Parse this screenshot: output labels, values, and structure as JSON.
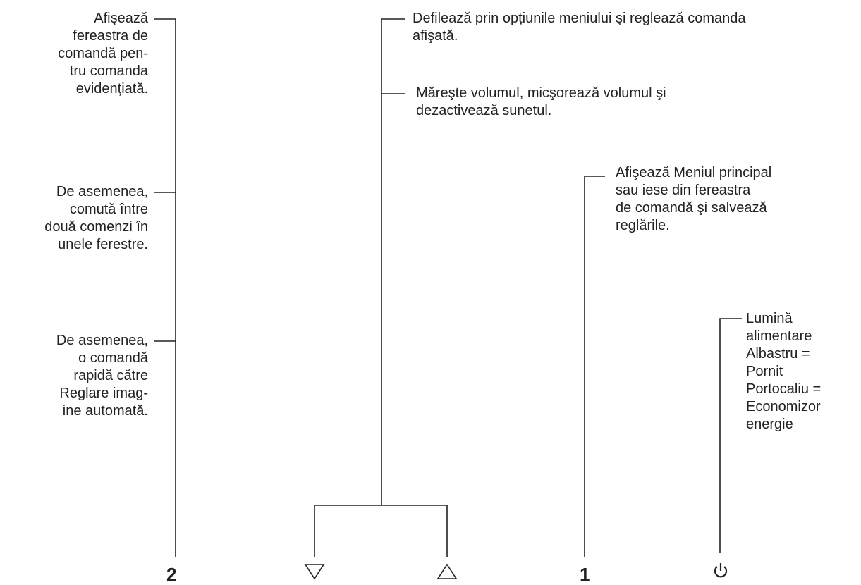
{
  "labels": {
    "button2_select": "Afişează\nfereastra de\ncomandă pen-\ntru comanda\nevidențiată.",
    "button2_toggle": "De asemenea,\ncomută între\ndouă comenzi în\nunele ferestre.",
    "button2_auto": "De asemenea,\no comandă\nrapidă către\nReglare imag-\nine automată.",
    "arrows_scroll": "Defilează prin opțiunile meniului şi reglează comanda\nafişată.",
    "arrows_volume": "Măreşte volumul, micşorează volumul şi\ndezactivează sunetul.",
    "button1_menu": "Afişează Meniul principal\nsau iese din fereastra\nde comandă şi salvează\nreglările.",
    "power_light": "Lumină\nalimentare\nAlbastru =\nPornit\nPortocaliu =\nEconomizor\nenergie"
  },
  "buttons": {
    "button_2": "2",
    "button_1": "1",
    "down_arrow_icon": "down-triangle",
    "up_arrow_icon": "up-triangle",
    "power_icon": "power"
  }
}
